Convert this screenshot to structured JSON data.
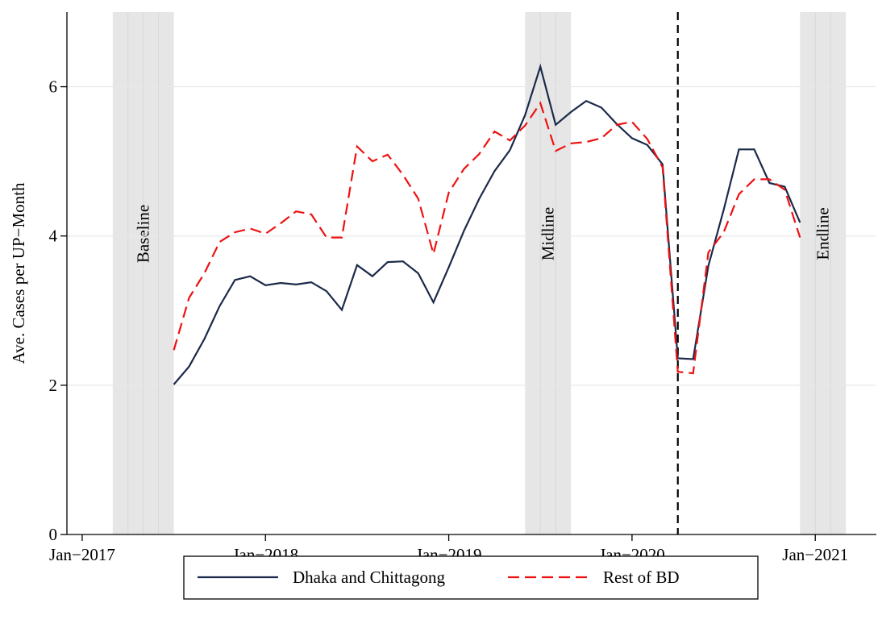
{
  "chart_data": {
    "type": "line",
    "y_label": "Ave. Cases per UP−Month",
    "x": [
      "2017-07",
      "2017-08",
      "2017-09",
      "2017-10",
      "2017-11",
      "2017-12",
      "2018-01",
      "2018-02",
      "2018-03",
      "2018-04",
      "2018-05",
      "2018-06",
      "2018-07",
      "2018-08",
      "2018-09",
      "2018-10",
      "2018-11",
      "2018-12",
      "2019-01",
      "2019-02",
      "2019-03",
      "2019-04",
      "2019-05",
      "2019-06",
      "2019-07",
      "2019-08",
      "2019-09",
      "2019-10",
      "2019-11",
      "2019-12",
      "2020-01",
      "2020-02",
      "2020-03",
      "2020-04",
      "2020-05",
      "2020-06",
      "2020-07",
      "2020-08",
      "2020-09",
      "2020-10",
      "2020-11",
      "2020-12"
    ],
    "series": [
      {
        "name": "Dhaka and Chittagong",
        "color": "#1b2a4a",
        "dash": "solid",
        "values": [
          2.01,
          2.25,
          2.62,
          3.06,
          3.41,
          3.46,
          3.34,
          3.37,
          3.35,
          3.38,
          3.26,
          3.01,
          3.61,
          3.46,
          3.65,
          3.66,
          3.5,
          3.11,
          3.58,
          4.07,
          4.5,
          4.87,
          5.15,
          5.62,
          6.27,
          5.49,
          5.66,
          5.81,
          5.72,
          5.5,
          5.31,
          5.22,
          4.96,
          2.36,
          2.35,
          3.6,
          4.35,
          5.16,
          5.16,
          4.71,
          4.66,
          4.18
        ]
      },
      {
        "name": "Rest of BD",
        "color": "#ee1111",
        "dash": "dashed",
        "values": [
          2.47,
          3.17,
          3.5,
          3.92,
          4.05,
          4.1,
          4.03,
          4.17,
          4.33,
          4.29,
          3.98,
          3.98,
          5.2,
          5.0,
          5.09,
          4.82,
          4.5,
          3.76,
          4.58,
          4.9,
          5.1,
          5.4,
          5.28,
          5.48,
          5.78,
          5.14,
          5.24,
          5.26,
          5.31,
          5.49,
          5.53,
          5.3,
          4.92,
          2.18,
          2.16,
          3.78,
          4.05,
          4.56,
          4.76,
          4.76,
          4.62,
          3.98
        ]
      }
    ],
    "xlim": [
      "2016-12",
      "2021-05"
    ],
    "xticks": [
      {
        "value": "2017-01",
        "label": "Jan−2017"
      },
      {
        "value": "2018-01",
        "label": "Jan−2018"
      },
      {
        "value": "2019-01",
        "label": "Jan−2019"
      },
      {
        "value": "2020-01",
        "label": "Jan−2020"
      },
      {
        "value": "2021-01",
        "label": "Jan−2021"
      }
    ],
    "ylim": [
      0,
      7
    ],
    "yticks": [
      0,
      2,
      4,
      6
    ],
    "grid": true,
    "bands": [
      {
        "label": "Baseline",
        "start": "2017-03",
        "end": "2017-06"
      },
      {
        "label": "Midline",
        "start": "2019-06",
        "end": "2019-08"
      },
      {
        "label": "Endline",
        "start": "2020-12",
        "end": "2021-02"
      }
    ],
    "vline": "2020-04",
    "legend": "bottom"
  }
}
